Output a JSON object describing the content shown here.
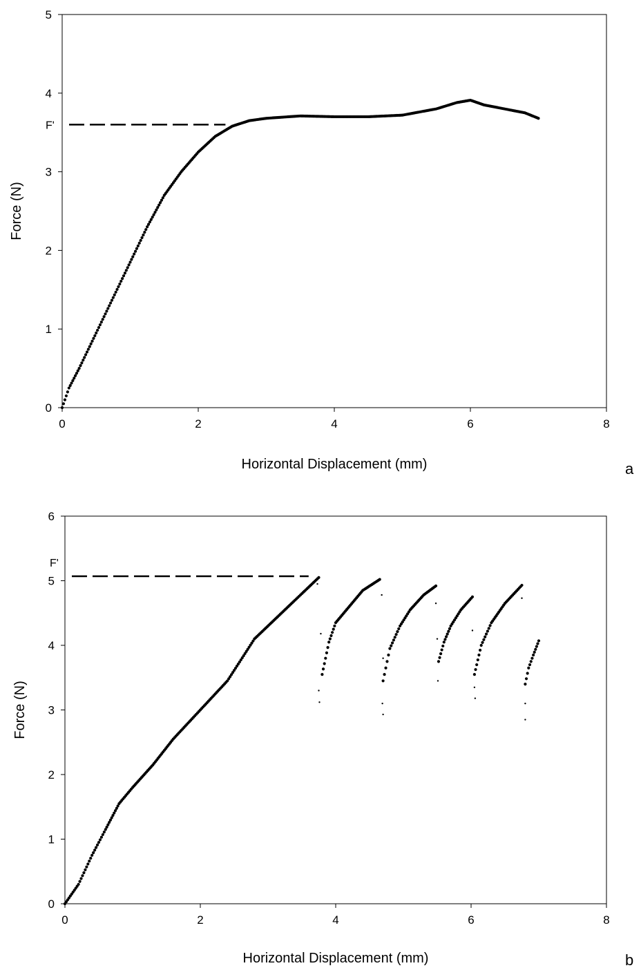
{
  "chart_data": [
    {
      "type": "scatter",
      "panel_label": "a",
      "xlabel": "Horizontal Displacement (mm)",
      "ylabel": "Force (N)",
      "xlim": [
        0,
        8
      ],
      "ylim": [
        0,
        5
      ],
      "xticks": [
        0,
        2,
        4,
        6,
        8
      ],
      "yticks": [
        0,
        1,
        2,
        3,
        4,
        5
      ],
      "grid": false,
      "reference_line": {
        "label": "F'",
        "y": 3.6,
        "x_from": 0,
        "x_to": 2.4,
        "style": "dashed"
      },
      "series": [
        {
          "points": [
            [
              0.0,
              0.0
            ],
            [
              0.1,
              0.25
            ],
            [
              0.25,
              0.5
            ],
            [
              0.5,
              0.95
            ],
            [
              0.75,
              1.4
            ],
            [
              1.0,
              1.85
            ],
            [
              1.25,
              2.3
            ],
            [
              1.5,
              2.7
            ],
            [
              1.75,
              3.0
            ],
            [
              2.0,
              3.25
            ],
            [
              2.25,
              3.45
            ],
            [
              2.5,
              3.58
            ],
            [
              2.75,
              3.65
            ],
            [
              3.0,
              3.68
            ],
            [
              3.5,
              3.71
            ],
            [
              4.0,
              3.7
            ],
            [
              4.5,
              3.7
            ],
            [
              5.0,
              3.72
            ],
            [
              5.5,
              3.8
            ],
            [
              5.8,
              3.88
            ],
            [
              6.0,
              3.91
            ],
            [
              6.2,
              3.85
            ],
            [
              6.5,
              3.8
            ],
            [
              6.8,
              3.75
            ],
            [
              7.0,
              3.68
            ]
          ]
        }
      ]
    },
    {
      "type": "scatter",
      "panel_label": "b",
      "xlabel": "Horizontal Displacement (mm)",
      "ylabel": "Force (N)",
      "xlim": [
        0,
        8
      ],
      "ylim": [
        0,
        6
      ],
      "xticks": [
        0,
        2,
        4,
        6,
        8
      ],
      "yticks": [
        0,
        1,
        2,
        3,
        4,
        5,
        6
      ],
      "grid": false,
      "reference_line": {
        "label": "F'",
        "y": 5.07,
        "x_from": 0,
        "x_to": 3.6,
        "style": "dashed"
      },
      "series": [
        {
          "points": [
            [
              0.0,
              0.0
            ],
            [
              0.2,
              0.3
            ],
            [
              0.4,
              0.75
            ],
            [
              0.6,
              1.15
            ],
            [
              0.8,
              1.55
            ],
            [
              1.0,
              1.8
            ],
            [
              1.3,
              2.15
            ],
            [
              1.6,
              2.55
            ],
            [
              2.0,
              3.0
            ],
            [
              2.4,
              3.45
            ],
            [
              2.8,
              4.1
            ],
            [
              3.2,
              4.5
            ],
            [
              3.5,
              4.8
            ],
            [
              3.75,
              5.05
            ]
          ]
        },
        {
          "points": [
            [
              3.8,
              3.55
            ],
            [
              3.9,
              4.05
            ],
            [
              4.0,
              4.35
            ],
            [
              4.2,
              4.6
            ],
            [
              4.4,
              4.85
            ],
            [
              4.65,
              5.02
            ]
          ]
        },
        {
          "points": [
            [
              4.7,
              3.45
            ],
            [
              4.8,
              3.95
            ],
            [
              4.95,
              4.3
            ],
            [
              5.1,
              4.55
            ],
            [
              5.3,
              4.78
            ],
            [
              5.48,
              4.92
            ]
          ]
        },
        {
          "points": [
            [
              5.52,
              3.75
            ],
            [
              5.6,
              4.05
            ],
            [
              5.7,
              4.3
            ],
            [
              5.85,
              4.55
            ],
            [
              6.02,
              4.75
            ]
          ]
        },
        {
          "points": [
            [
              6.05,
              3.55
            ],
            [
              6.15,
              4.0
            ],
            [
              6.3,
              4.35
            ],
            [
              6.5,
              4.65
            ],
            [
              6.75,
              4.93
            ]
          ]
        },
        {
          "points": [
            [
              6.8,
              3.4
            ],
            [
              6.85,
              3.65
            ],
            [
              6.92,
              3.85
            ],
            [
              7.0,
              4.07
            ]
          ]
        },
        {
          "points": [
            [
              3.73,
              4.95
            ],
            [
              3.78,
              4.18
            ],
            [
              3.75,
              3.3
            ],
            [
              3.76,
              3.12
            ],
            [
              4.68,
              4.78
            ],
            [
              4.7,
              3.8
            ],
            [
              4.69,
              3.1
            ],
            [
              4.7,
              2.93
            ],
            [
              5.48,
              4.65
            ],
            [
              5.5,
              4.1
            ],
            [
              5.51,
              3.45
            ],
            [
              6.02,
              4.23
            ],
            [
              6.05,
              3.35
            ],
            [
              6.06,
              3.18
            ],
            [
              6.75,
              4.73
            ],
            [
              6.8,
              3.1
            ],
            [
              6.8,
              2.85
            ]
          ]
        }
      ]
    }
  ]
}
